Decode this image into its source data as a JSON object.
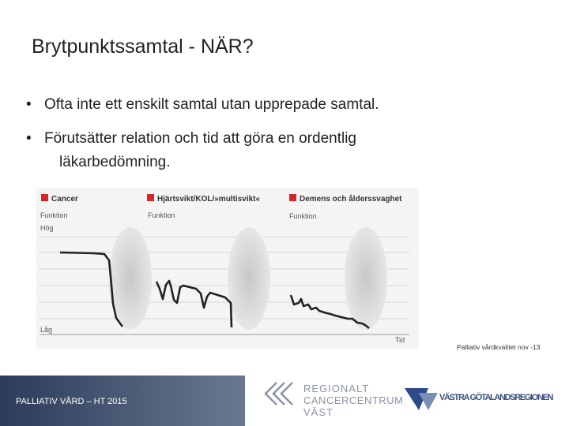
{
  "header": {
    "title": "Brytpunktssamtal - NÄR?"
  },
  "bullets": [
    "Ofta inte ett enskilt samtal utan upprepade samtal.",
    "Förutsätter relation och tid att göra en ordentlig läkarbedömning."
  ],
  "figure": {
    "panels": [
      {
        "title": "Cancer",
        "y_label": "Funktion"
      },
      {
        "title": "Hjärtsvikt/KOL/»multisvikt«",
        "y_label": "Funktion"
      },
      {
        "title": "Demens och ålderssvaghet",
        "y_label": "Funktion"
      }
    ],
    "y_high": "Hög",
    "y_low": "Låg",
    "x_label": "Tid"
  },
  "source": "Palliativ vårdkvalitet nov -13",
  "footer": {
    "course": "PALLIATIV VÅRD – HT 2015",
    "logo1": [
      "REGIONALT",
      "CANCERCENTRUM",
      "VÄST"
    ],
    "logo2": "VÄSTRA GÖTALANDSREGIONEN"
  }
}
